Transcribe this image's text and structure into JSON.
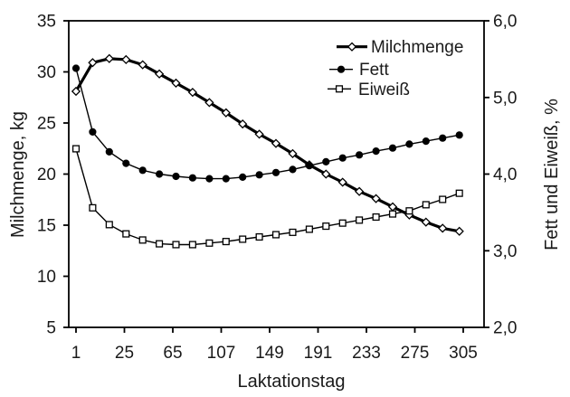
{
  "figure": {
    "background_color": "#ffffff",
    "text_color": "#1a1a1a",
    "line_color": "#000000"
  },
  "chart_data": {
    "type": "line",
    "title": "",
    "xlabel": "Laktationstag",
    "ylabel_left": "Milchmenge, kg",
    "ylabel_right": "Fett und Eiweiß, %",
    "grid": false,
    "legend_position": "top-right-inside",
    "decimal_style": "comma",
    "x_tick_labels": [
      "1",
      "25",
      "65",
      "107",
      "149",
      "191",
      "233",
      "275",
      "305"
    ],
    "y_left_ticks": [
      5,
      10,
      15,
      20,
      25,
      30,
      35
    ],
    "y_left_tick_labels": [
      "5",
      "10",
      "15",
      "20",
      "25",
      "30",
      "35"
    ],
    "y_left_range": [
      5,
      35
    ],
    "y_right_ticks": [
      2,
      3,
      4,
      5,
      6
    ],
    "y_right_tick_labels": [
      "2,0",
      "3,0",
      "4,0",
      "5,0",
      "6,0"
    ],
    "y_right_range": [
      2.0,
      6.0
    ],
    "x_days_estimated": [
      1,
      9,
      18,
      26,
      40,
      54,
      68,
      82,
      97,
      111,
      126,
      140,
      154,
      169,
      183,
      198,
      212,
      227,
      241,
      256,
      270,
      282,
      292,
      303
    ],
    "series": [
      {
        "name": "Milchmenge",
        "axis": "left",
        "unit": "kg",
        "marker": "open-diamond",
        "line": "thick",
        "values": [
          28.1,
          30.9,
          31.3,
          31.2,
          30.7,
          29.8,
          28.9,
          28.0,
          27.0,
          26.0,
          24.9,
          23.9,
          23.0,
          22.0,
          20.9,
          20.0,
          19.2,
          18.3,
          17.6,
          16.8,
          16.0,
          15.3,
          14.7,
          14.4
        ]
      },
      {
        "name": "Fett",
        "axis": "right",
        "unit": "%",
        "marker": "filled-circle",
        "line": "thin",
        "values": [
          5.38,
          4.55,
          4.29,
          4.14,
          4.05,
          4.0,
          3.97,
          3.95,
          3.94,
          3.94,
          3.96,
          3.99,
          4.02,
          4.06,
          4.11,
          4.16,
          4.21,
          4.25,
          4.3,
          4.34,
          4.39,
          4.43,
          4.47,
          4.51
        ]
      },
      {
        "name": "Eiweiß",
        "axis": "right",
        "unit": "%",
        "marker": "open-square",
        "line": "thin",
        "values": [
          4.33,
          3.56,
          3.34,
          3.22,
          3.14,
          3.09,
          3.08,
          3.08,
          3.1,
          3.12,
          3.15,
          3.18,
          3.21,
          3.24,
          3.28,
          3.32,
          3.36,
          3.4,
          3.44,
          3.48,
          3.52,
          3.6,
          3.67,
          3.75
        ]
      }
    ]
  }
}
